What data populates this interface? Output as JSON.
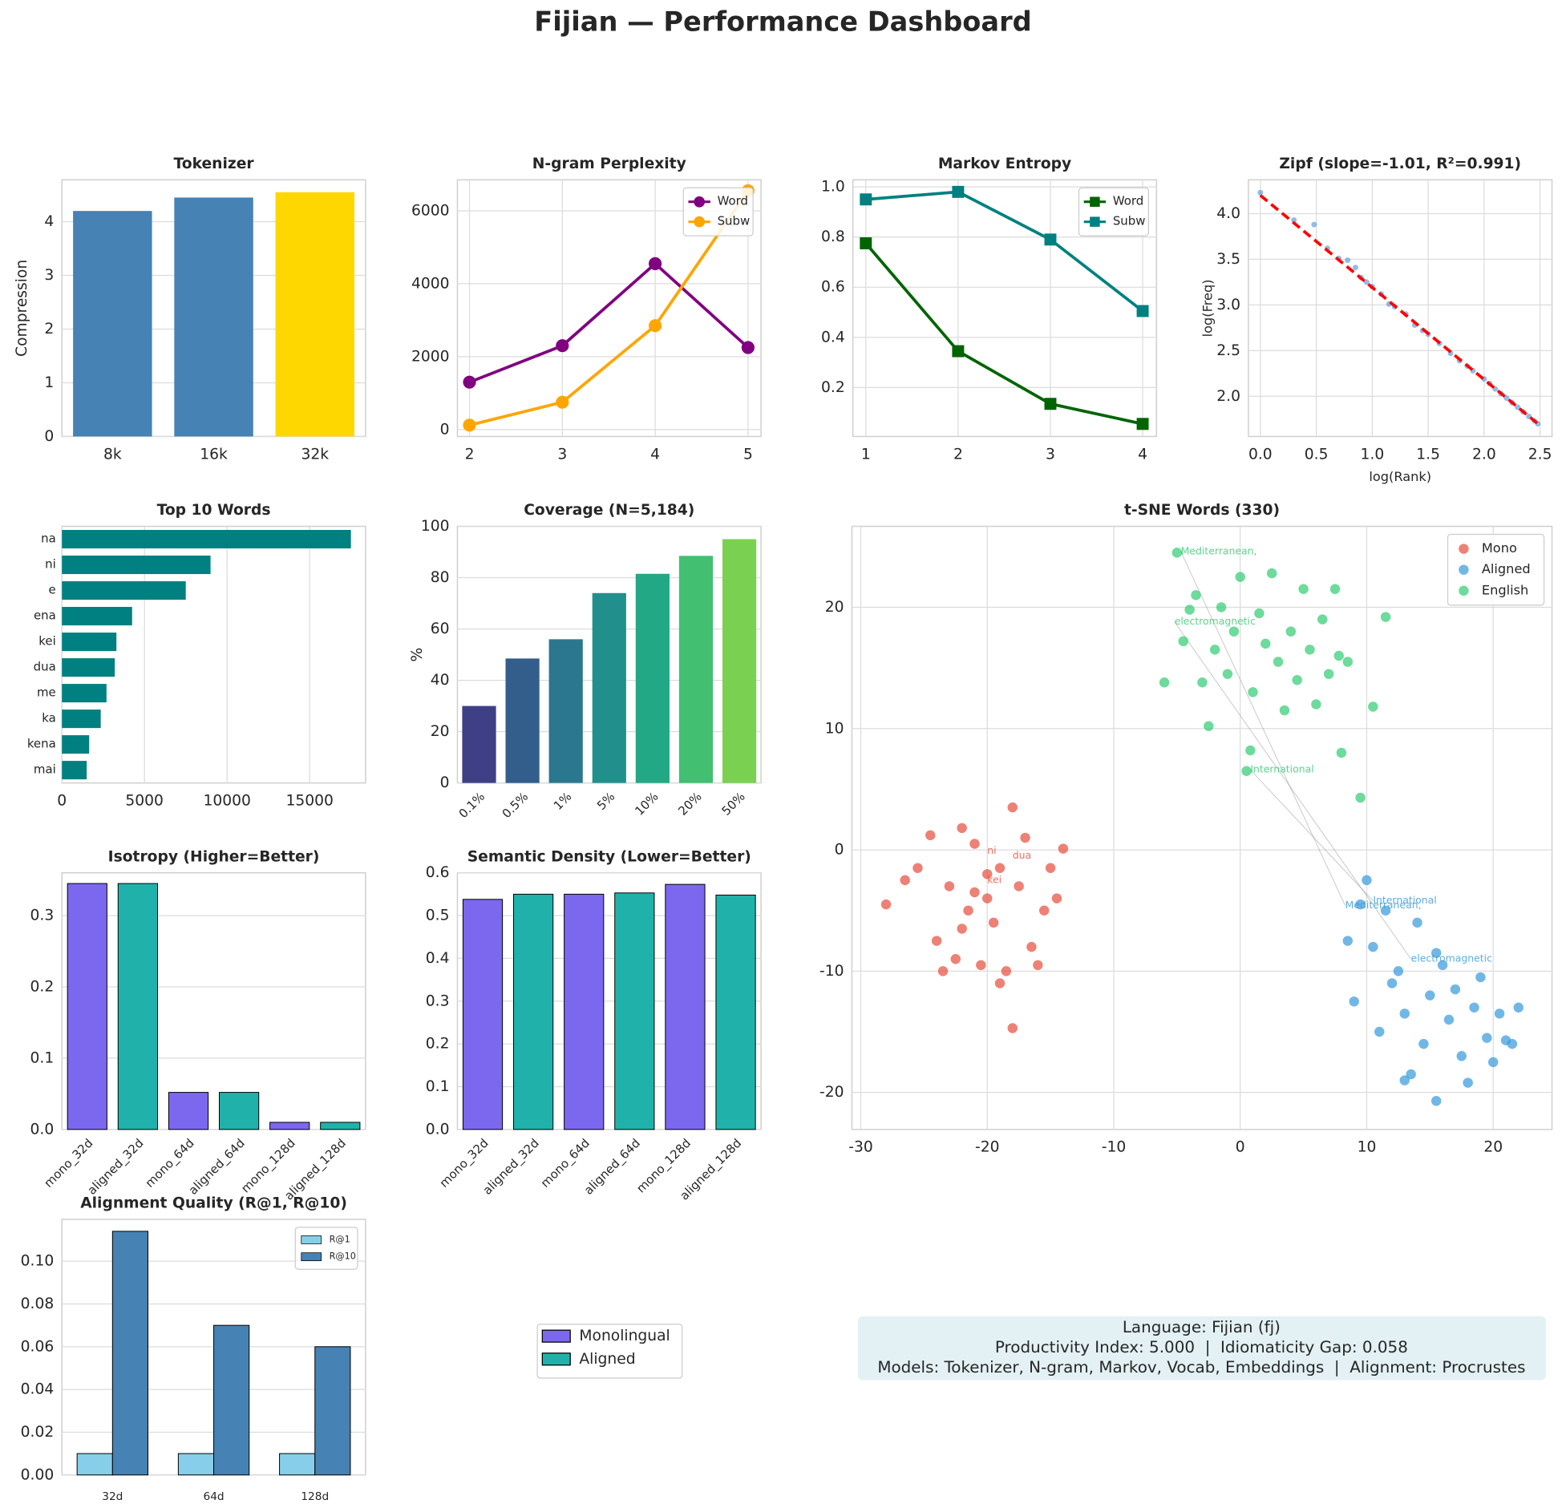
{
  "title": "Fijian — Performance Dashboard",
  "chart_data": [
    {
      "type": "bar",
      "title": "Tokenizer",
      "ylabel": "Compression",
      "categories": [
        "8k",
        "16k",
        "32k"
      ],
      "values": [
        4.2,
        4.45,
        4.55
      ],
      "colors": [
        "#4682b4",
        "#4682b4",
        "#ffd700"
      ],
      "ylim": [
        0,
        4.78
      ],
      "yticks": [
        0,
        1,
        2,
        3,
        4
      ],
      "grid": true
    },
    {
      "type": "line",
      "title": "N-gram Perplexity",
      "x": [
        2,
        3,
        4,
        5
      ],
      "xlim": [
        1.87,
        5.14
      ],
      "xticks": [
        2,
        3,
        4,
        5
      ],
      "ylim": [
        -190,
        6850
      ],
      "yticks": [
        0,
        2000,
        4000,
        6000
      ],
      "marker": "circle",
      "legend": "upper right",
      "grid": true,
      "series": [
        {
          "name": "Word",
          "color": "#800080",
          "values": [
            1300,
            2300,
            4550,
            2250
          ]
        },
        {
          "name": "Subw",
          "color": "#ffa500",
          "values": [
            120,
            750,
            2850,
            6550
          ]
        }
      ]
    },
    {
      "type": "line",
      "title": "Markov Entropy",
      "x": [
        1,
        2,
        3,
        4
      ],
      "xlim": [
        0.86,
        4.15
      ],
      "xticks": [
        1,
        2,
        3,
        4
      ],
      "ylim": [
        0.005,
        1.028
      ],
      "yticks": [
        0.2,
        0.4,
        0.6,
        0.8,
        {
          "value": 1,
          "label": "1.0"
        }
      ],
      "marker": "square",
      "legend": "upper right",
      "grid": true,
      "series": [
        {
          "name": "Word",
          "color": "#006400",
          "values": [
            0.775,
            0.345,
            0.135,
            0.055
          ]
        },
        {
          "name": "Subw",
          "color": "#008080",
          "values": [
            0.95,
            0.98,
            0.79,
            0.505
          ]
        }
      ]
    },
    {
      "type": "scatter",
      "title": "Zipf (slope=-1.01, R²=0.991)",
      "xlabel": "log(Rank)",
      "ylabel": "log(Freq)",
      "xlim": [
        -0.107,
        2.607
      ],
      "ylim": [
        1.56,
        4.37
      ],
      "grid": true,
      "xticks": [
        {
          "value": 0,
          "label": "0.0"
        },
        0.5,
        {
          "value": 1,
          "label": "1.0"
        },
        1.5,
        {
          "value": 2,
          "label": "2.0"
        },
        2.5
      ],
      "yticks": [
        {
          "value": 2,
          "label": "2.0"
        },
        2.5,
        {
          "value": 3,
          "label": "3.0"
        },
        3.5,
        {
          "value": 4,
          "label": "4.0"
        }
      ],
      "points": {
        "color": "#4a90d9",
        "x": [
          0,
          0.3,
          0.48,
          0.6,
          0.7,
          0.78,
          0.85,
          0.9,
          0.95,
          1.0,
          1.08,
          1.15,
          1.2,
          1.3,
          1.38,
          1.45,
          1.5,
          1.6,
          1.7,
          1.78,
          1.85,
          1.9,
          2.0,
          2.05,
          2.1,
          2.15,
          2.2,
          2.25,
          2.3,
          2.35,
          2.4,
          2.45,
          2.48
        ],
        "y": [
          4.23,
          3.93,
          3.88,
          3.62,
          3.51,
          3.49,
          3.41,
          3.3,
          3.25,
          3.2,
          3.12,
          3.01,
          2.98,
          2.9,
          2.78,
          2.72,
          2.68,
          2.58,
          2.47,
          2.39,
          2.33,
          2.28,
          2.19,
          2.14,
          2.08,
          2.03,
          1.98,
          1.93,
          1.88,
          1.83,
          1.78,
          1.73,
          1.7
        ]
      },
      "fit": {
        "color": "red",
        "x": [
          0,
          2.48
        ],
        "y": [
          4.2,
          1.7
        ]
      }
    },
    {
      "type": "barh",
      "title": "Top 10 Words",
      "categories": [
        "na",
        "ni",
        "e",
        "ena",
        "kei",
        "dua",
        "me",
        "ka",
        "kena",
        "mai"
      ],
      "values": [
        17500,
        9000,
        7500,
        4250,
        3300,
        3200,
        2700,
        2350,
        1650,
        1500
      ],
      "color": "#008080",
      "xlim": [
        0,
        18385
      ],
      "xticks": [
        0,
        5000,
        10000,
        15000
      ],
      "grid": true
    },
    {
      "type": "bar",
      "title": "Coverage (N=5,184)",
      "ylabel": "%",
      "categories": [
        "0.1%",
        "0.5%",
        "1%",
        "5%",
        "10%",
        "20%",
        "50%"
      ],
      "values": [
        30,
        48.5,
        56,
        74,
        81.5,
        88.5,
        95
      ],
      "colors": [
        "#3f3f86",
        "#335e8c",
        "#2a778e",
        "#21908d",
        "#22a884",
        "#43bf71",
        "#7ad151"
      ],
      "ylim": [
        0,
        100
      ],
      "yticks": [
        0,
        20,
        40,
        60,
        80,
        100
      ],
      "rotate_labels": true,
      "grid": true
    },
    {
      "type": "scatter",
      "title": "t-SNE Words (330)",
      "xlim": [
        -30.7,
        24.65
      ],
      "ylim": [
        -23.05,
        26.67
      ],
      "xticks": [
        -30,
        -20,
        -10,
        0,
        10,
        20
      ],
      "yticks": [
        -20,
        -10,
        0,
        10,
        20
      ],
      "legend": "upper right",
      "grid": true,
      "series": [
        {
          "name": "Mono",
          "color": "#e74c3c",
          "x": [
            -28,
            -26.5,
            -25.5,
            -24.5,
            -24,
            -23,
            -22.5,
            -22,
            -21.5,
            -21,
            -20.5,
            -20,
            -19.5,
            -19,
            -18.5,
            -18,
            -17.5,
            -17,
            -16.5,
            -16,
            -15.5,
            -15,
            -14.5,
            -14,
            -22,
            -20,
            -18,
            -23.5,
            -19,
            -21
          ],
          "y": [
            -4.5,
            -2.5,
            -1.5,
            1.2,
            -7.5,
            -3,
            -9,
            1.8,
            -5,
            0.5,
            -9.5,
            -2,
            -6,
            -1.5,
            -10,
            3.5,
            -3,
            1,
            -8,
            -9.5,
            -5,
            -1.5,
            -4,
            0.1,
            -6.5,
            -4,
            -14.7,
            -10,
            -11,
            -3.5
          ]
        },
        {
          "name": "Aligned",
          "color": "#3498db",
          "x": [
            8.5,
            9,
            9.5,
            10,
            10.5,
            11,
            11.5,
            12,
            12.5,
            13,
            13.5,
            14,
            14.5,
            15,
            15.5,
            16,
            16.5,
            17,
            17.5,
            18,
            18.5,
            19,
            19.5,
            20,
            20.5,
            21,
            21.5,
            22,
            15.5,
            13
          ],
          "y": [
            -7.5,
            -12.5,
            -4.5,
            -2.5,
            -8,
            -15,
            -5,
            -11,
            -10,
            -13.5,
            -18.5,
            -6,
            -16,
            -12,
            -20.7,
            -9.5,
            -14,
            -11.5,
            -17,
            -19.2,
            -13,
            -10.5,
            -15.5,
            -17.5,
            -13.5,
            -15.7,
            -16,
            -13,
            -8.5,
            -19
          ]
        },
        {
          "name": "English",
          "color": "#2ecc71",
          "x": [
            -5,
            -4.5,
            -4,
            -3.5,
            -3,
            -2.5,
            -2,
            -1.5,
            -1,
            -0.5,
            0,
            0.5,
            1,
            1.5,
            2,
            2.5,
            3,
            3.5,
            4,
            4.5,
            5,
            5.5,
            6,
            6.5,
            7,
            7.5,
            8,
            8.5,
            9.5,
            10.5,
            11.5,
            -6,
            0.8,
            7.8
          ],
          "y": [
            24.5,
            17.2,
            19.8,
            21,
            13.8,
            10.2,
            16.5,
            20,
            14.5,
            18,
            22.5,
            6.5,
            13,
            19.5,
            17,
            22.8,
            15.5,
            11.5,
            18,
            14,
            21.5,
            16.5,
            12,
            19,
            14.5,
            21.5,
            8,
            15.5,
            4.3,
            11.8,
            19.2,
            13.8,
            8.2,
            16
          ]
        }
      ],
      "annotations": [
        {
          "text": "Mediterranean,",
          "x": -4.7,
          "y": 24.6,
          "color": "#2ecc71"
        },
        {
          "text": "electromagnetic",
          "x": -5.2,
          "y": 18.8,
          "color": "#2ecc71"
        },
        {
          "text": "International",
          "x": 0.8,
          "y": 6.6,
          "color": "#2ecc71"
        },
        {
          "text": "Mediterranean,",
          "x": 8.3,
          "y": -4.6,
          "color": "#3498db"
        },
        {
          "text": "International",
          "x": 10.5,
          "y": -4.2,
          "color": "#3498db"
        },
        {
          "text": "electromagnetic",
          "x": 13.5,
          "y": -9,
          "color": "#3498db"
        },
        {
          "text": "ni",
          "x": -20,
          "y": -0.1,
          "color": "#e74c3c"
        },
        {
          "text": "dua",
          "x": -18,
          "y": -0.5,
          "color": "#e74c3c"
        },
        {
          "text": "kei",
          "x": -20,
          "y": -2.5,
          "color": "#e74c3c"
        }
      ]
    },
    {
      "type": "bar",
      "title": "Isotropy (Higher=Better)",
      "categories": [
        "mono_32d",
        "aligned_32d",
        "mono_64d",
        "aligned_64d",
        "mono_128d",
        "aligned_128d"
      ],
      "values": [
        0.345,
        0.345,
        0.052,
        0.052,
        0.01,
        0.01
      ],
      "colors": [
        "#7b68ee",
        "#20b2aa",
        "#7b68ee",
        "#20b2aa",
        "#7b68ee",
        "#20b2aa"
      ],
      "edgecolor": "black",
      "ylim": [
        0,
        0.36
      ],
      "yticks": [
        {
          "value": 0,
          "label": "0.0"
        },
        0.1,
        0.2,
        0.3
      ],
      "rotate_labels": true,
      "grid": true
    },
    {
      "type": "bar",
      "title": "Semantic Density (Lower=Better)",
      "categories": [
        "mono_32d",
        "aligned_32d",
        "mono_64d",
        "aligned_64d",
        "mono_128d",
        "aligned_128d"
      ],
      "values": [
        0.538,
        0.55,
        0.55,
        0.553,
        0.573,
        0.548
      ],
      "colors": [
        "#7b68ee",
        "#20b2aa",
        "#7b68ee",
        "#20b2aa",
        "#7b68ee",
        "#20b2aa"
      ],
      "edgecolor": "black",
      "ylim": [
        0,
        0.6
      ],
      "yticks": [
        {
          "value": 0,
          "label": "0.0"
        },
        0.1,
        0.2,
        0.3,
        0.4,
        0.5,
        0.6
      ],
      "rotate_labels": true,
      "grid": true
    },
    {
      "type": "grouped_bar",
      "title": "Alignment Quality (R@1, R@10)",
      "categories": [
        "32d",
        "64d",
        "128d"
      ],
      "edgecolor": "black",
      "legend": "upper right",
      "ylim": [
        0,
        0.1196
      ],
      "grid": true,
      "yticks": [
        {
          "value": 0,
          "label": "0.00"
        },
        {
          "value": 0.02,
          "label": "0.02"
        },
        {
          "value": 0.04,
          "label": "0.04"
        },
        {
          "value": 0.06,
          "label": "0.06"
        },
        {
          "value": 0.08,
          "label": "0.08"
        },
        {
          "value": 0.1,
          "label": "0.10"
        }
      ],
      "series": [
        {
          "name": "R@1",
          "color": "#87ceeb",
          "values": [
            0.01,
            0.01,
            0.01
          ]
        },
        {
          "name": "R@10",
          "color": "#4682b4",
          "values": [
            0.114,
            0.07,
            0.06
          ]
        }
      ]
    }
  ],
  "figure_legend": [
    {
      "name": "Monolingual",
      "color": "#7b68ee"
    },
    {
      "name": "Aligned",
      "color": "#20b2aa"
    }
  ],
  "info_box": [
    "Language: Fijian (fj)",
    "Productivity Index: 5.000  |  Idiomaticity Gap: 0.058",
    "Models: Tokenizer, N-gram, Markov, Vocab, Embeddings  |  Alignment: Procrustes"
  ]
}
